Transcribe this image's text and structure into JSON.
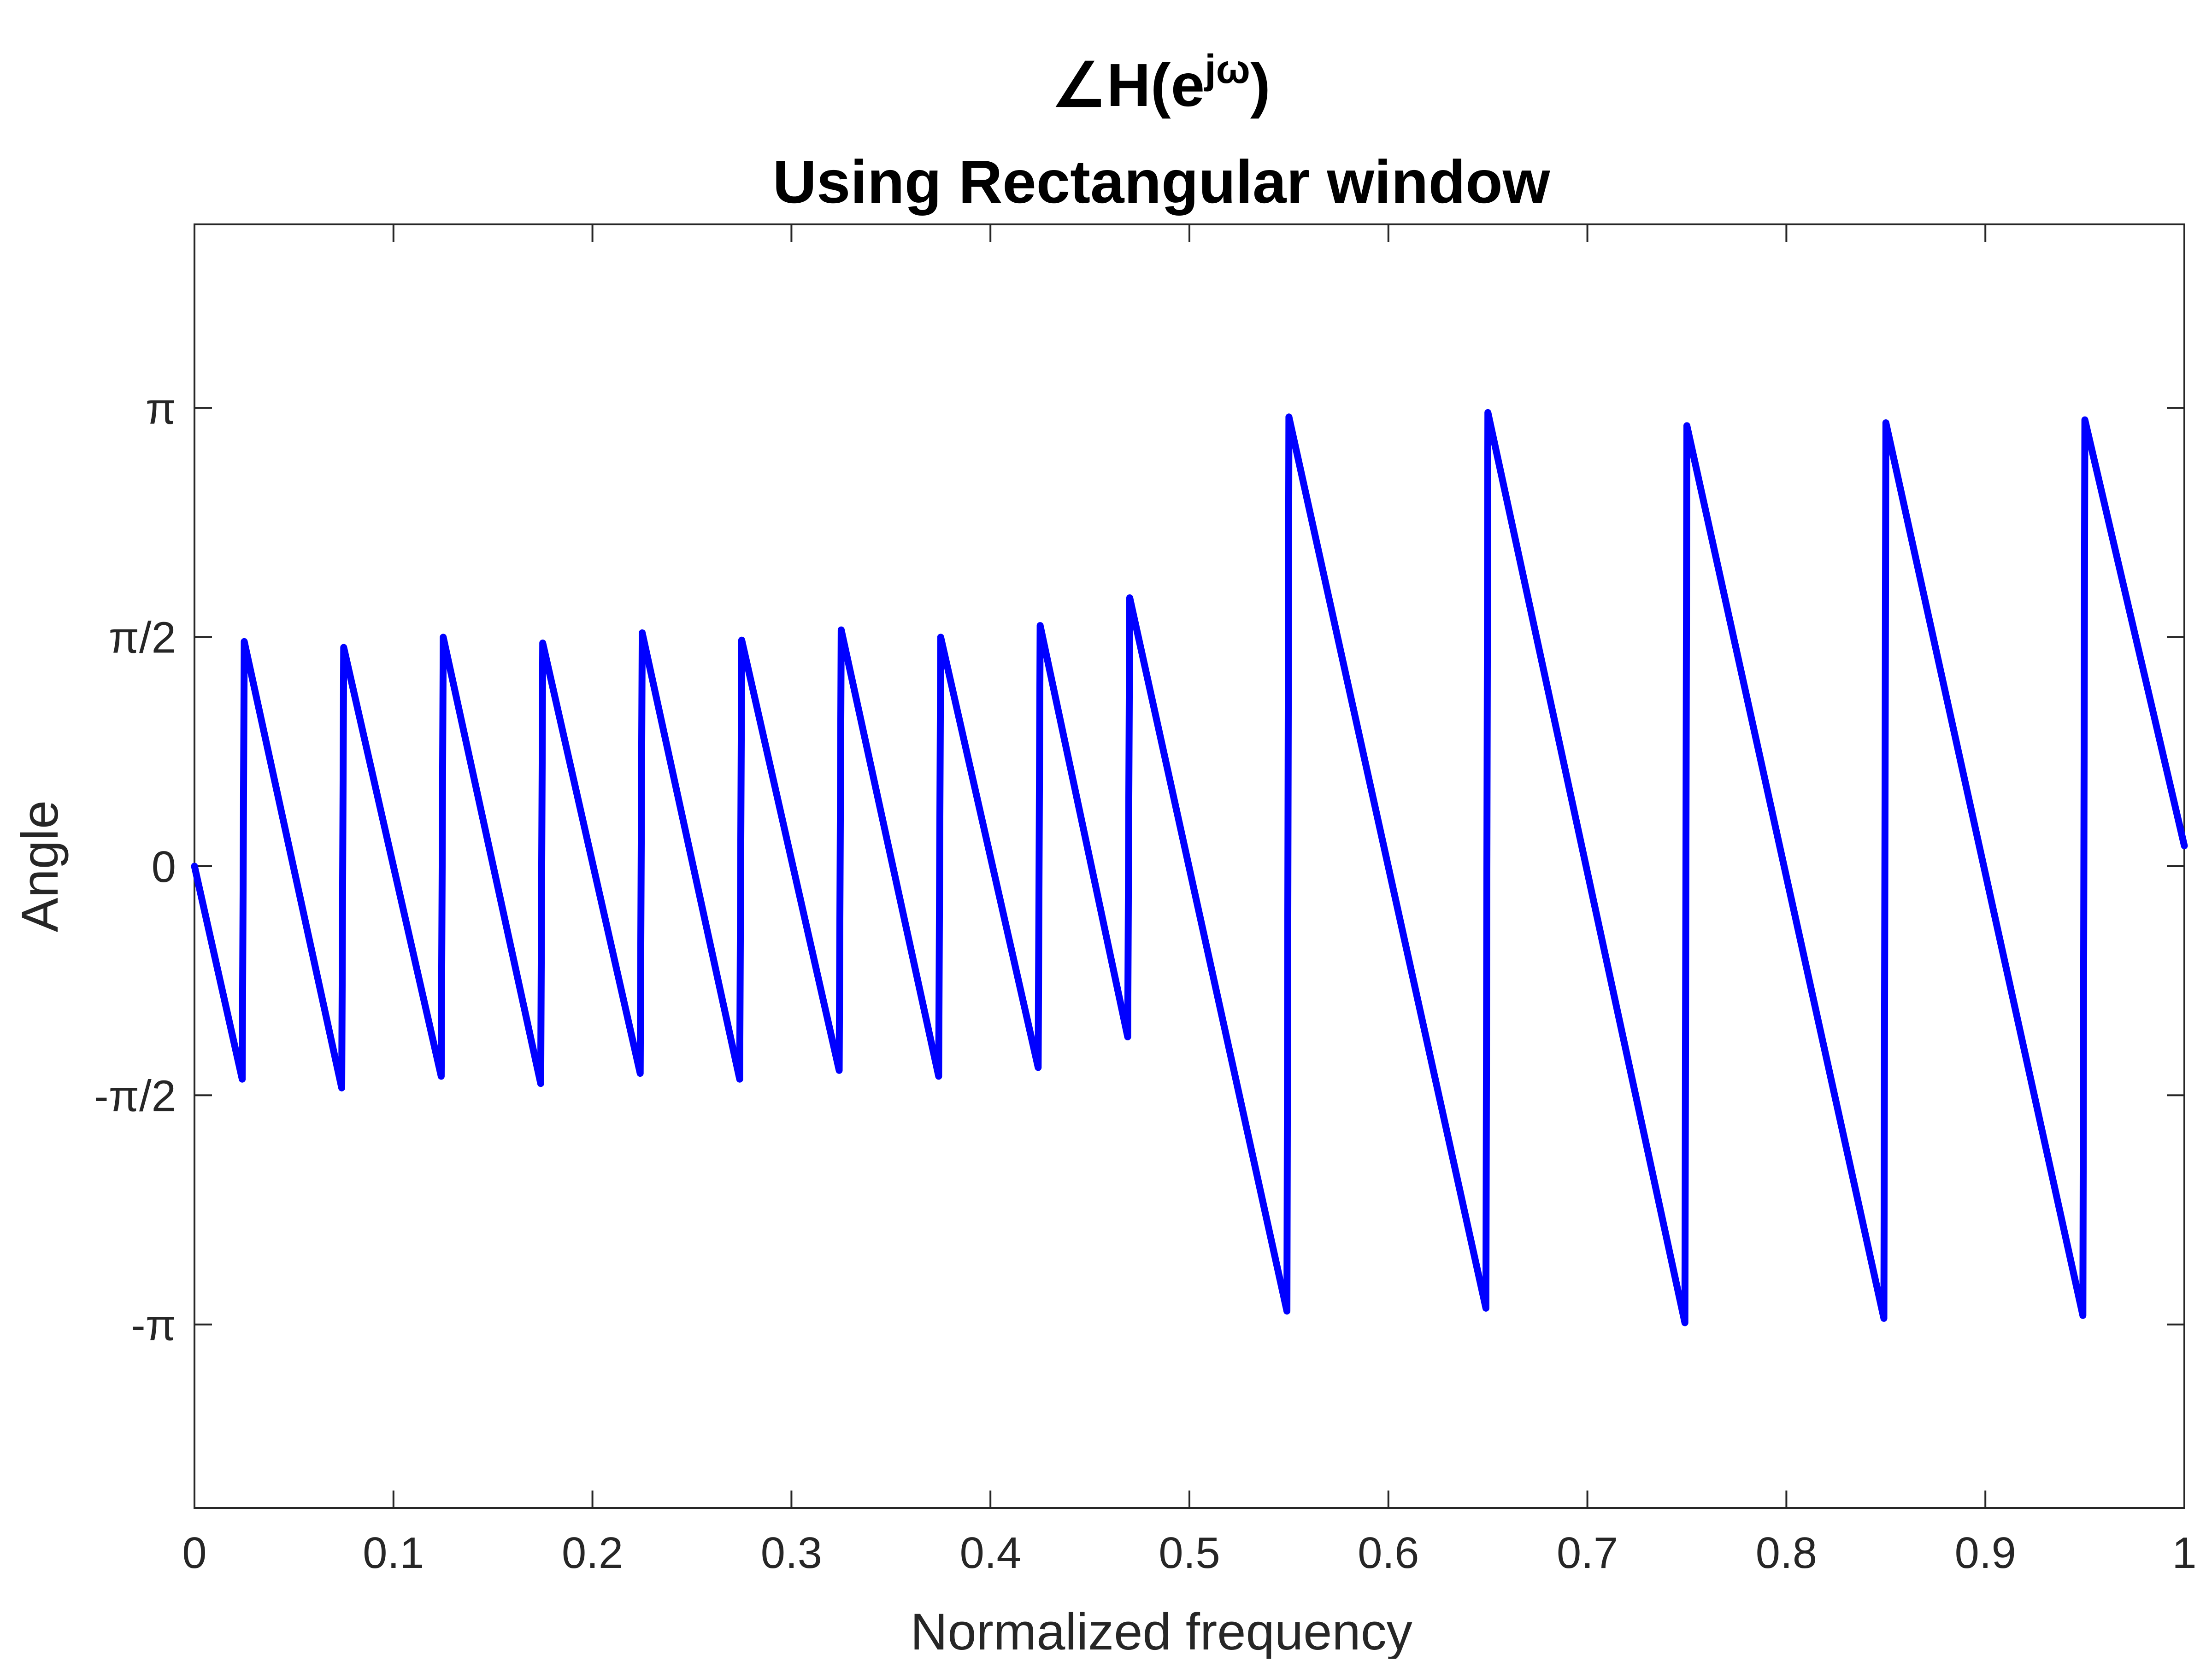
{
  "chart_data": {
    "type": "line",
    "title": "∠H(e^{jω})",
    "title_parts": {
      "prefix": "∠H(e",
      "superscript": "jω",
      "suffix": ")"
    },
    "subtitle": "Using Rectangular window",
    "xlabel": "Normalized frequency",
    "ylabel": "Angle",
    "xlim": [
      0,
      1
    ],
    "ylim": [
      -4.4,
      4.4
    ],
    "grid": false,
    "line_color": "#0000ff",
    "axis_color": "#262626",
    "x_ticks": [
      {
        "value": 0,
        "label": "0"
      },
      {
        "value": 0.1,
        "label": "0.1"
      },
      {
        "value": 0.2,
        "label": "0.2"
      },
      {
        "value": 0.3,
        "label": "0.3"
      },
      {
        "value": 0.4,
        "label": "0.4"
      },
      {
        "value": 0.5,
        "label": "0.5"
      },
      {
        "value": 0.6,
        "label": "0.6"
      },
      {
        "value": 0.7,
        "label": "0.7"
      },
      {
        "value": 0.8,
        "label": "0.8"
      },
      {
        "value": 0.9,
        "label": "0.9"
      },
      {
        "value": 1,
        "label": "1"
      }
    ],
    "y_ticks": [
      {
        "value": 3.1416,
        "label": "π"
      },
      {
        "value": 1.5708,
        "label": "π/2"
      },
      {
        "value": 0,
        "label": "0"
      },
      {
        "value": -1.5708,
        "label": "-π/2"
      },
      {
        "value": -3.1416,
        "label": "-π"
      }
    ],
    "series": [
      {
        "x": [
          0,
          0.024,
          0.025,
          0.074,
          0.075,
          0.124,
          0.125,
          0.174,
          0.175,
          0.224,
          0.225,
          0.274,
          0.275,
          0.324,
          0.325,
          0.374,
          0.375,
          0.424,
          0.425,
          0.469,
          0.47,
          0.549,
          0.55,
          0.649,
          0.65,
          0.749,
          0.75,
          0.849,
          0.85,
          0.949,
          0.95,
          1.0
        ],
        "y": [
          0,
          -1.46,
          1.54,
          -1.52,
          1.5,
          -1.44,
          1.57,
          -1.49,
          1.53,
          -1.42,
          1.6,
          -1.46,
          1.55,
          -1.4,
          1.62,
          -1.44,
          1.57,
          -1.38,
          1.65,
          -1.17,
          1.84,
          -3.05,
          3.08,
          -3.03,
          3.11,
          -3.13,
          3.02,
          -3.1,
          3.04,
          -3.08,
          3.06,
          0.14
        ]
      }
    ]
  }
}
